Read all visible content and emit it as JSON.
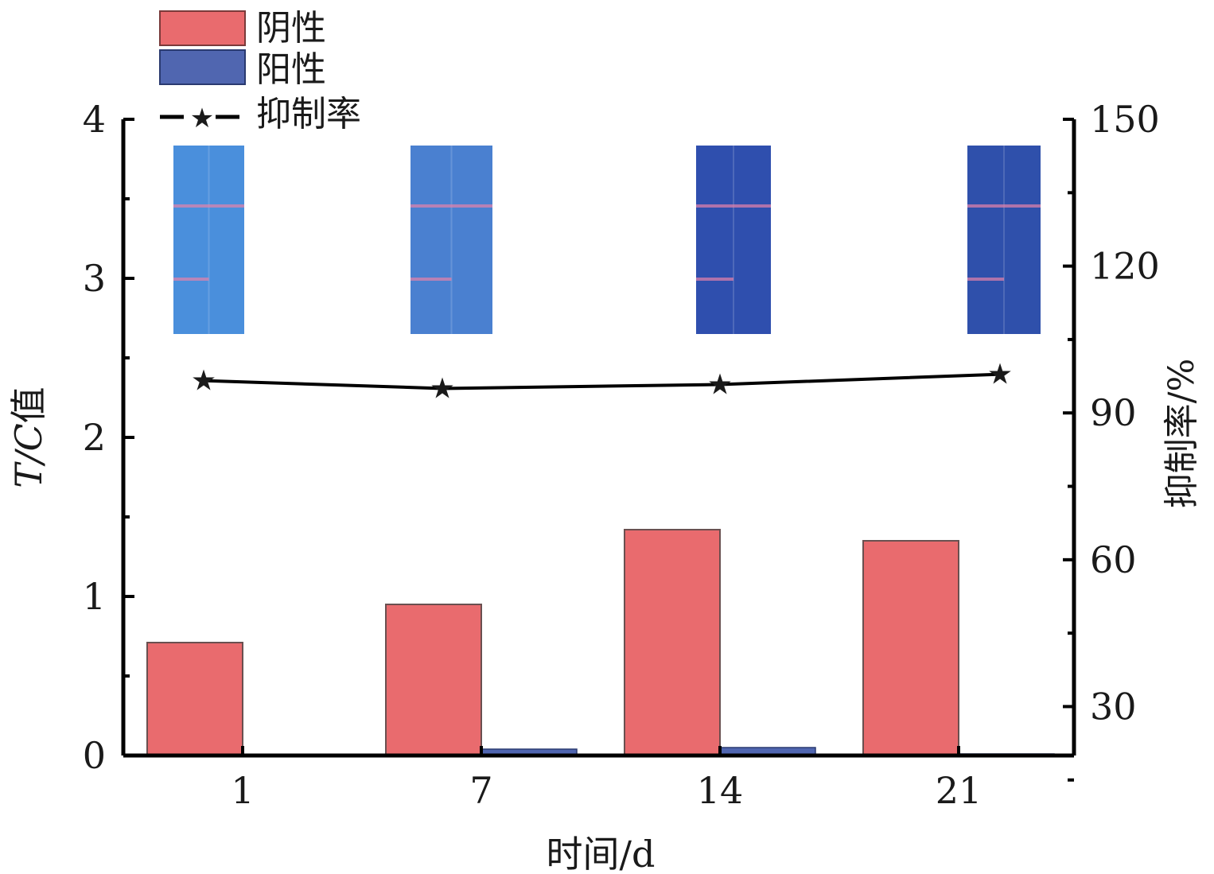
{
  "chart_data": {
    "type": "bar",
    "title": "",
    "categories": [
      "1",
      "7",
      "14",
      "21"
    ],
    "series": [
      {
        "name": "阴性",
        "type": "bar",
        "axis": "left",
        "color": "#e96b6e",
        "values": [
          0.71,
          0.95,
          1.42,
          1.35
        ]
      },
      {
        "name": "阳性",
        "type": "bar",
        "axis": "left",
        "color": "#5066b0",
        "values": [
          0.0,
          0.04,
          0.05,
          0.01
        ]
      },
      {
        "name": "抑制率",
        "type": "line",
        "axis": "right",
        "marker": "star",
        "color": "#000000",
        "values": [
          96.6,
          95.0,
          95.8,
          97.9
        ]
      }
    ],
    "xlabel": "时间/d",
    "ylabel": "T/C值",
    "ylabel_italic_part": "T/C",
    "ylabel_rest": "值",
    "y2label": "抑制率/%",
    "ylim": [
      0,
      4
    ],
    "y2lim": [
      20,
      150
    ],
    "yticks": [
      "0",
      "1",
      "2",
      "3",
      "4"
    ],
    "y2ticks": [
      "30",
      "60",
      "90",
      "120",
      "150"
    ],
    "legend_position": "top-left",
    "grid": false,
    "strip_colors": [
      "#4a8fdc",
      "#4a80d0",
      "#2f4fae",
      "#2f50ab"
    ]
  }
}
